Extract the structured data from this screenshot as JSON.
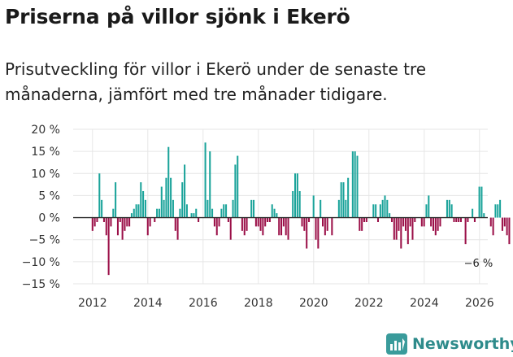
{
  "title": "Priserna på villor sjönk i Ekerö",
  "subtitle": "Prisutveckling för villor i Ekerö under de senaste tre månaderna, jämfört med tre månader tidigare.",
  "brand": {
    "name": "Newsworthy",
    "icon": "newsworthy-logo-icon"
  },
  "colors": {
    "positive": "#1aa39a",
    "negative": "#9b1048",
    "grid": "#e6e6e6",
    "zero": "#333333"
  },
  "chart_data": {
    "type": "bar",
    "title": "Priserna på villor sjönk i Ekerö",
    "xlabel": "",
    "ylabel": "",
    "ylim": [
      -15,
      20
    ],
    "xlim": [
      2011.3,
      2026.3
    ],
    "yticks": [
      20,
      15,
      10,
      5,
      0,
      -5,
      -10,
      -15
    ],
    "ytick_labels": [
      "20 %",
      "15 %",
      "10 %",
      "5 %",
      "0 %",
      "−5 %",
      "−10 %",
      "−15 %"
    ],
    "xticks": [
      2012,
      2014,
      2016,
      2018,
      2020,
      2022,
      2024,
      2026
    ],
    "xtick_labels": [
      "2012",
      "2014",
      "2016",
      "2018",
      "2020",
      "2022",
      "2024",
      "2026"
    ],
    "annotation": {
      "text": "−6 %",
      "x": 2025.9,
      "value": -6
    },
    "start": 2012.0,
    "step": 0.0833,
    "values": [
      -3,
      -2,
      -1,
      10,
      4,
      -1,
      -4,
      -13,
      -2,
      2,
      8,
      -4,
      -1,
      -5,
      -3,
      -2,
      -2,
      1,
      2,
      3,
      3,
      8,
      6,
      4,
      -4,
      -2,
      0,
      -1,
      2,
      2,
      7,
      4,
      9,
      16,
      9,
      4,
      -3,
      -5,
      2,
      8,
      12,
      3,
      0,
      1,
      1,
      2,
      -1,
      0,
      0,
      17,
      4,
      15,
      2,
      -2,
      -4,
      -2,
      2,
      3,
      3,
      -1,
      -5,
      4,
      12,
      14,
      0,
      -3,
      -4,
      -3,
      0,
      4,
      4,
      -2,
      -2,
      -3,
      -4,
      -2,
      -1,
      -1,
      3,
      2,
      1,
      -4,
      -4,
      -2,
      -4,
      -5,
      0,
      6,
      10,
      10,
      6,
      -2,
      -3,
      -7,
      -1,
      0,
      5,
      -5,
      -7,
      4,
      -2,
      -4,
      -3,
      0,
      -4,
      0,
      0,
      4,
      8,
      8,
      4,
      9,
      0,
      15,
      15,
      14,
      -3,
      -3,
      -1,
      -1,
      0,
      0,
      3,
      3,
      -1,
      3,
      4,
      5,
      4,
      1,
      -1,
      -5,
      -5,
      -3,
      -7,
      -2,
      -3,
      -6,
      -2,
      -5,
      -1,
      0,
      0,
      -2,
      -2,
      3,
      5,
      -2,
      -3,
      -4,
      -3,
      -2,
      0,
      0,
      4,
      4,
      3,
      -1,
      -1,
      -1,
      -1,
      0,
      -6,
      -1,
      0,
      2,
      -1,
      0,
      7,
      7,
      1,
      0,
      0,
      -2,
      -4,
      3,
      3,
      4,
      -3,
      -2,
      -4,
      -6
    ]
  }
}
